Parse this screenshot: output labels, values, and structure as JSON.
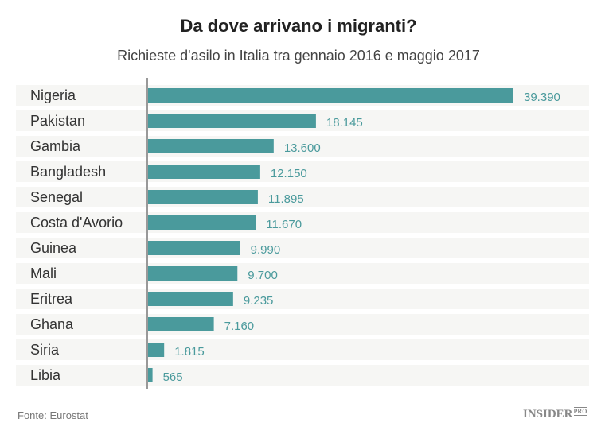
{
  "chart_data": {
    "type": "bar",
    "orientation": "horizontal",
    "title": "Da dove arrivano i migranti?",
    "subtitle": "Richieste d'asilo in Italia tra gennaio 2016 e maggio 2017",
    "categories": [
      "Nigeria",
      "Pakistan",
      "Gambia",
      "Bangladesh",
      "Senegal",
      "Costa d'Avorio",
      "Guinea",
      "Mali",
      "Eritrea",
      "Ghana",
      "Siria",
      "Libia"
    ],
    "values": [
      39390,
      18145,
      13600,
      12150,
      11895,
      11670,
      9990,
      9700,
      9235,
      7160,
      1815,
      565
    ],
    "value_labels": [
      "39.390",
      "18.145",
      "13.600",
      "12.150",
      "11.895",
      "11.670",
      "9.990",
      "9.700",
      "9.235",
      "7.160",
      "1.815",
      "565"
    ],
    "xlim": [
      0,
      39390
    ],
    "grid": false,
    "colors": {
      "bar": "#4a9a9c",
      "label": "#4a9a9c",
      "row_bg": "#f6f6f4"
    }
  },
  "source": "Fonte: Eurostat",
  "logo": {
    "main": "INSIDER",
    "sup": "PRO"
  }
}
